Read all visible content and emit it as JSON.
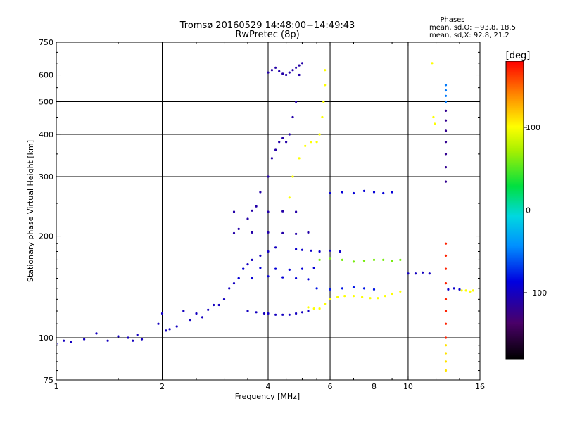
{
  "chart_data": {
    "type": "scatter",
    "title": "Tromsø 20160529 14:48:00−14:49:43",
    "subtitle": "RwPretec (8p)",
    "xlabel": "Frequency [MHz]",
    "ylabel": "Stationary phase Virtual Height [km]",
    "xscale": "log",
    "yscale": "log",
    "xlim": [
      1,
      16
    ],
    "ylim": [
      75,
      750
    ],
    "grid": true,
    "xticks": [
      1,
      2,
      4,
      6,
      8,
      10,
      16
    ],
    "xtick_labels": [
      "1",
      "2",
      "4",
      "6",
      "8",
      "10",
      "16"
    ],
    "xgrid": [
      2,
      4,
      6,
      8,
      10
    ],
    "yticks": [
      75,
      100,
      200,
      300,
      400,
      500,
      600,
      750
    ],
    "ytick_labels": [
      "75",
      "100",
      "200",
      "300",
      "400",
      "500",
      "600",
      "750"
    ],
    "ygrid": [
      100,
      200,
      300,
      400,
      500,
      600
    ],
    "stats": {
      "heading": "Phases",
      "line_o": "mean, sd,O:  −93.8, 18.5",
      "line_x": "mean, sd,X:  92.8, 21.2"
    },
    "colorbar": {
      "label": "[deg]",
      "range": [
        -180,
        180
      ],
      "ticks": [
        100,
        0,
        -100
      ],
      "tick_labels": [
        "100",
        "0",
        "−100"
      ]
    },
    "series": [
      {
        "color_value": -100,
        "x": [
          1.0,
          1.05,
          1.1,
          1.2,
          1.3,
          1.4,
          1.5,
          1.6,
          1.65,
          1.7,
          1.75
        ],
        "y": [
          96,
          98,
          97,
          99,
          103,
          98,
          101,
          100,
          98,
          102,
          99
        ]
      },
      {
        "color_value": -100,
        "x": [
          1.95,
          2.0,
          2.05,
          2.1,
          2.2,
          2.3,
          2.4,
          2.5,
          2.6,
          2.7,
          2.8
        ],
        "y": [
          110,
          118,
          105,
          106,
          108,
          120,
          113,
          118,
          115,
          121,
          125
        ]
      },
      {
        "color_value": -100,
        "x": [
          2.9,
          3.0,
          3.1,
          3.2,
          3.3,
          3.4,
          3.5,
          3.6,
          3.8,
          4.0,
          4.2
        ],
        "y": [
          125,
          130,
          140,
          145,
          150,
          160,
          165,
          170,
          175,
          180,
          185
        ]
      },
      {
        "color_value": -110,
        "x": [
          3.3,
          3.5,
          3.7,
          3.8,
          4.0,
          4.1,
          4.2,
          4.3,
          4.4,
          4.5,
          4.6,
          4.7,
          4.8,
          4.9
        ],
        "y": [
          210,
          225,
          245,
          270,
          300,
          340,
          360,
          380,
          390,
          380,
          400,
          450,
          500,
          600
        ]
      },
      {
        "color_value": -110,
        "x": [
          4.0,
          4.1,
          4.2,
          4.3,
          4.4,
          4.5,
          4.6,
          4.7,
          4.8,
          4.9,
          5.0
        ],
        "y": [
          610,
          620,
          630,
          615,
          605,
          600,
          610,
          620,
          630,
          640,
          650
        ]
      },
      {
        "color_value": -100,
        "x": [
          3.5,
          3.7,
          3.9,
          4.0,
          4.2,
          4.4,
          4.6,
          4.8,
          5.0,
          5.2
        ],
        "y": [
          120,
          119,
          118,
          118,
          117,
          117,
          117,
          118,
          119,
          120
        ]
      },
      {
        "color_value": -90,
        "x": [
          3.3,
          3.6,
          4.0,
          4.4,
          4.8,
          5.2
        ],
        "y": [
          150,
          150,
          152,
          151,
          150,
          149
        ]
      },
      {
        "color_value": -90,
        "x": [
          3.4,
          3.8,
          4.2,
          4.6,
          5.0,
          5.4
        ],
        "y": [
          160,
          161,
          160,
          159,
          160,
          161
        ]
      },
      {
        "color_value": -110,
        "x": [
          3.2,
          3.6,
          4.0,
          4.4,
          4.8
        ],
        "y": [
          236,
          238,
          236,
          237,
          236
        ]
      },
      {
        "color_value": -110,
        "x": [
          3.2,
          3.6,
          4.0,
          4.4,
          4.8,
          5.2
        ],
        "y": [
          204,
          205,
          205,
          204,
          203,
          205
        ]
      },
      {
        "color_value": -95,
        "x": [
          4.8,
          5.0,
          5.3,
          5.6,
          6.0,
          6.4
        ],
        "y": [
          183,
          182,
          181,
          180,
          181,
          180
        ]
      },
      {
        "color_value": 100,
        "x": [
          4.6,
          4.7,
          4.9,
          5.1,
          5.3,
          5.5,
          5.6,
          5.7,
          5.75,
          5.8,
          5.8
        ],
        "y": [
          260,
          300,
          340,
          370,
          380,
          380,
          400,
          450,
          500,
          560,
          620
        ]
      },
      {
        "color_value": 100,
        "x": [
          5.2,
          5.4,
          5.6,
          5.8,
          6.0,
          6.3,
          6.6,
          7.0,
          7.4,
          7.8,
          8.2,
          8.6,
          9.0,
          9.5
        ],
        "y": [
          123,
          122,
          122,
          126,
          130,
          132,
          133,
          133,
          132,
          131,
          131,
          133,
          135,
          137
        ]
      },
      {
        "color_value": 60,
        "x": [
          5.6,
          6.0,
          6.5,
          7.0,
          7.5,
          8.0,
          8.5,
          9.0,
          9.5
        ],
        "y": [
          170,
          172,
          170,
          168,
          169,
          170,
          170,
          169,
          170
        ]
      },
      {
        "color_value": -80,
        "x": [
          5.5,
          6.0,
          6.5,
          7.0,
          7.5,
          8.0
        ],
        "y": [
          140,
          139,
          140,
          141,
          140,
          139
        ]
      },
      {
        "color_value": -90,
        "x": [
          6.0,
          6.5,
          7.0,
          7.5,
          8.0,
          8.5,
          9.0
        ],
        "y": [
          268,
          270,
          268,
          272,
          270,
          268,
          270
        ]
      },
      {
        "color_value": -100,
        "x": [
          10.0,
          10.5,
          11.0,
          11.5
        ],
        "y": [
          155,
          155,
          156,
          155
        ]
      },
      {
        "color_value": -120,
        "x": [
          12.8,
          12.8,
          12.8,
          12.8,
          12.8,
          12.8,
          12.8
        ],
        "y": [
          290,
          320,
          350,
          380,
          410,
          440,
          470
        ]
      },
      {
        "color_value": -50,
        "x": [
          12.8,
          12.8,
          12.8,
          12.8
        ],
        "y": [
          500,
          520,
          540,
          560
        ]
      },
      {
        "color_value": 170,
        "x": [
          12.8,
          12.8,
          12.8,
          12.8,
          12.8,
          12.8,
          12.8,
          12.8
        ],
        "y": [
          190,
          175,
          160,
          145,
          130,
          120,
          110,
          100
        ]
      },
      {
        "color_value": 110,
        "x": [
          12.8,
          12.8,
          12.8,
          12.8
        ],
        "y": [
          95,
          90,
          85,
          80
        ]
      },
      {
        "color_value": 100,
        "x": [
          11.7,
          11.8,
          11.9
        ],
        "y": [
          650,
          450,
          430
        ]
      },
      {
        "color_value": -95,
        "x": [
          13.0,
          13.5,
          14.0
        ],
        "y": [
          139,
          140,
          139
        ]
      },
      {
        "color_value": 100,
        "x": [
          14.2,
          14.6,
          15.0,
          15.3
        ],
        "y": [
          138,
          138,
          137,
          138
        ]
      }
    ]
  }
}
